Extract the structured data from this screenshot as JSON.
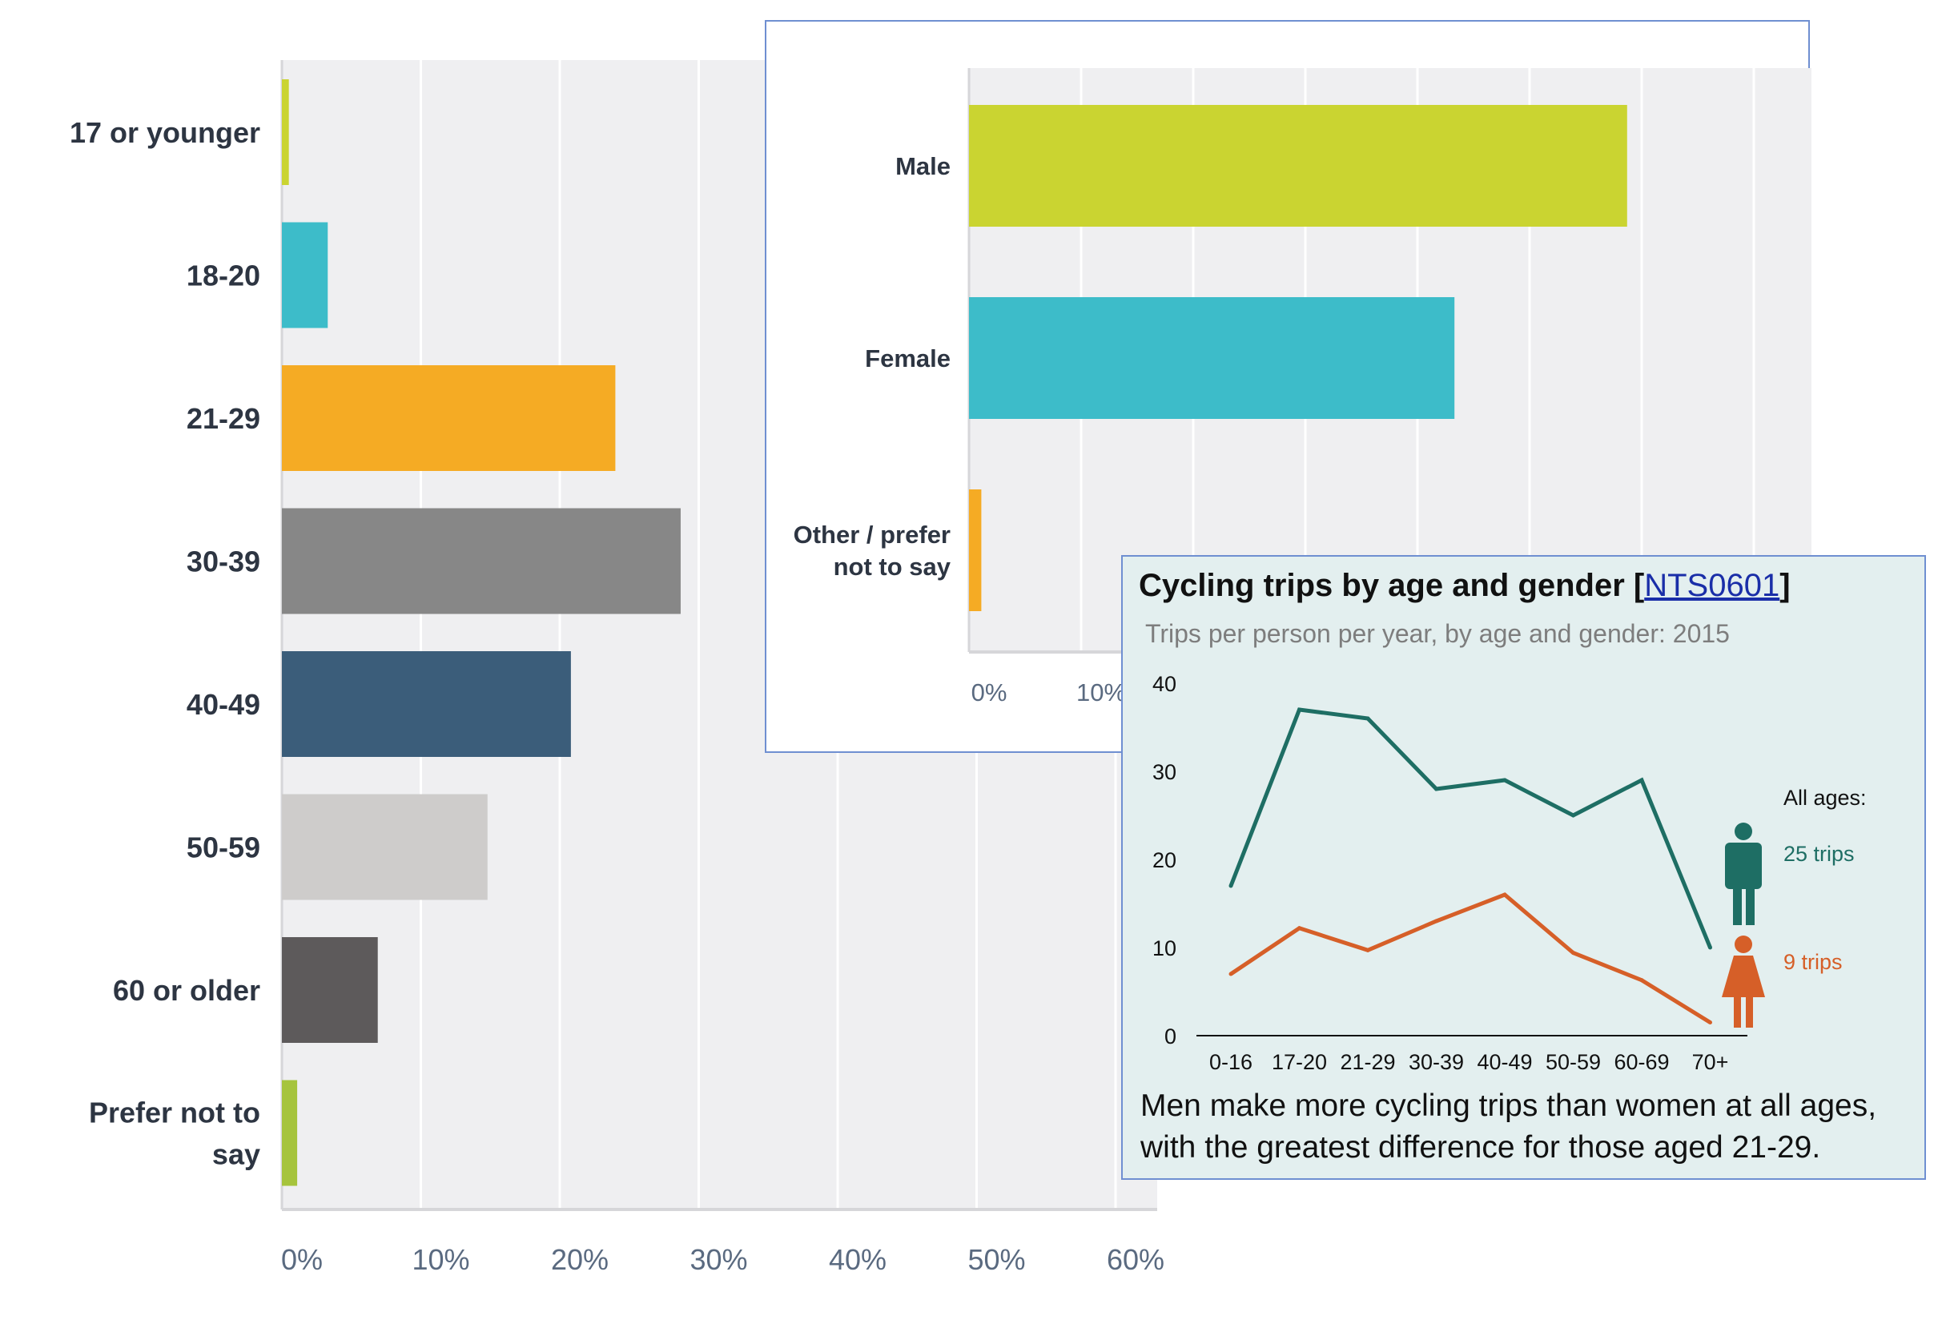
{
  "chart_data": [
    {
      "type": "bar",
      "orientation": "horizontal",
      "categories": [
        "17 or younger",
        "18-20",
        "21-29",
        "30-39",
        "40-49",
        "50-59",
        "60 or older",
        "Prefer not to say"
      ],
      "values": [
        0.5,
        3.3,
        24,
        28.7,
        20.8,
        14.8,
        6.9,
        1.1
      ],
      "colors": [
        "#cad431",
        "#3dbcc9",
        "#f5ab24",
        "#878787",
        "#3b5d7a",
        "#cecccb",
        "#5d5a5b",
        "#a6c43d"
      ],
      "xlim": [
        0,
        63
      ],
      "xticks": [
        "0%",
        "10%",
        "20%",
        "30%",
        "40%",
        "50%",
        "60%"
      ],
      "grid": true
    },
    {
      "type": "bar",
      "orientation": "horizontal",
      "categories": [
        "Male",
        "Female",
        "Other / prefer not to say"
      ],
      "values": [
        58.7,
        43.3,
        1.1
      ],
      "colors": [
        "#cad431",
        "#3dbcc9",
        "#f5ab24"
      ],
      "xlim": [
        0,
        75
      ],
      "xticks": [
        "0%",
        "10%"
      ],
      "grid": true
    },
    {
      "type": "line",
      "title": "Cycling trips by age and gender",
      "title_link": "NTS0601",
      "subtitle": "Trips per person per year, by age and gender: 2015",
      "categories": [
        "0-16",
        "17-20",
        "21-29",
        "30-39",
        "40-49",
        "50-59",
        "60-69",
        "70+"
      ],
      "series": [
        {
          "values": [
            17,
            37,
            36,
            28,
            29,
            25,
            29,
            10
          ],
          "color": "#1e6e64"
        },
        {
          "values": [
            7,
            12.2,
            9.7,
            13,
            16,
            9.4,
            6.3,
            1.5
          ],
          "color": "#d65f28"
        }
      ],
      "ylim": [
        0,
        40
      ],
      "yticks": [
        0,
        10,
        20,
        30,
        40
      ],
      "legend": {
        "heading": "All ages:",
        "items": [
          {
            "label": "25 trips",
            "icon": "male-figure-icon",
            "color": "#1e6e64"
          },
          {
            "label": "9 trips",
            "icon": "female-figure-icon",
            "color": "#d65f28"
          }
        ],
        "position": "right"
      },
      "caption": "Men make more cycling trips than women at all ages, with the greatest difference for those aged 21-29."
    }
  ]
}
